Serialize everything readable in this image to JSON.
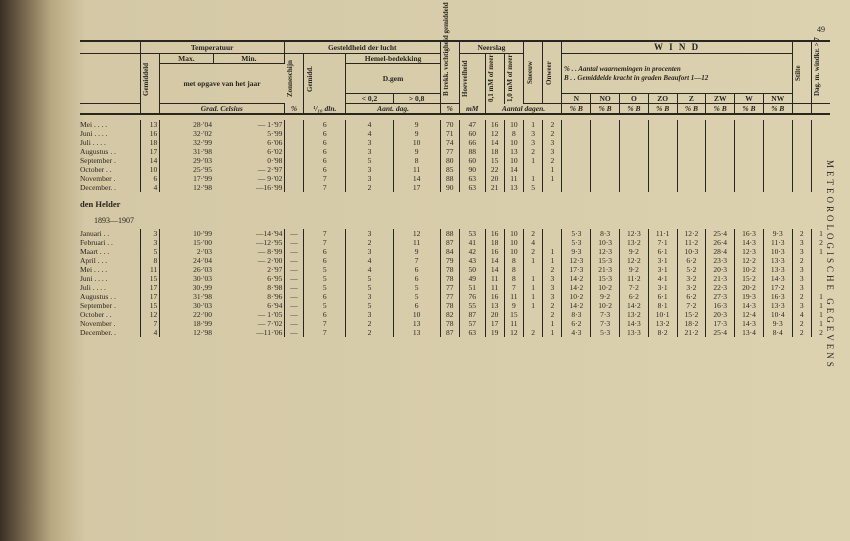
{
  "pagenum": "49",
  "sidetext": "METEOROLOGISCHE GEGEVENS",
  "headers": {
    "temperatuur": "Temperatuur",
    "gesteldheid": "Gesteldheid der lucht",
    "neerslag": "Neerslag",
    "wind": "W I N D",
    "gemiddeld": "Gemiddeld",
    "max": "Max.",
    "min": "Min.",
    "metopgave": "met opgave van het jaar",
    "zonneschijn": "Zonneschijn",
    "gemidd2": "Gemidd.",
    "hemelbedekking": "Hemel-bedekking",
    "dgem": "D.gem",
    "lt02": "< 0,2",
    "gt08": "> 0,8",
    "betrekk": "B trekk. vochtigheid gemiddeld",
    "hoeveelheid": "Hoeveelheid",
    "mm01": "0,1 mM of meer",
    "mm10": "1,0 mM of meer",
    "sneeuw": "Sneeuw",
    "onweer": "Onweer",
    "aant": "Aant. dag.",
    "tendin": "¹/₁₀ dln.",
    "windnote1": "% . . Aantal waarnemingen in procenten",
    "windnote2": "B . . Gemiddelde kracht in graden Beaufort 1—12",
    "stilte": "Stilte",
    "dagwindkr": "Dag. m. windkr. > 7",
    "gradcelsius": "Grad. Celsius",
    "pct": "%",
    "mm": "mM",
    "aantaldagen": "Aantal dagen.",
    "pctB": "% B",
    "dirs": [
      "N",
      "NO",
      "O",
      "ZO",
      "Z",
      "ZW",
      "W",
      "NW"
    ]
  },
  "section1": {
    "rows": [
      {
        "m": "Mei . . . .",
        "g": "13",
        "max": "28·'04",
        "min": "— 1·'97",
        "zon": "",
        "gem": "6",
        "lt": "4",
        "gt": "9",
        "bt": "70",
        "hv": "47",
        "d1": "16",
        "d2": "10",
        "sn": "1",
        "ow": "2"
      },
      {
        "m": "Juni . . . .",
        "g": "16",
        "max": "32·'02",
        "min": "5·'99",
        "zon": "",
        "gem": "6",
        "lt": "4",
        "gt": "9",
        "bt": "71",
        "hv": "60",
        "d1": "12",
        "d2": "8",
        "sn": "3",
        "ow": "2"
      },
      {
        "m": "Juli . . . .",
        "g": "18",
        "max": "32·'99",
        "min": "6·'06",
        "zon": "",
        "gem": "6",
        "lt": "3",
        "gt": "10",
        "bt": "74",
        "hv": "66",
        "d1": "14",
        "d2": "10",
        "sn": "3",
        "ow": "3"
      },
      {
        "m": "Augustus . .",
        "g": "17",
        "max": "31·'98",
        "min": "6·'02",
        "zon": "",
        "gem": "6",
        "lt": "3",
        "gt": "9",
        "bt": "77",
        "hv": "88",
        "d1": "18",
        "d2": "13",
        "sn": "2",
        "ow": "3"
      },
      {
        "m": "September .",
        "g": "14",
        "max": "29·'03",
        "min": "0·'98",
        "zon": "",
        "gem": "6",
        "lt": "5",
        "gt": "8",
        "bt": "80",
        "hv": "60",
        "d1": "15",
        "d2": "10",
        "sn": "1",
        "ow": "2"
      },
      {
        "m": "October . .",
        "g": "10",
        "max": "25·'95",
        "min": "— 2·'97",
        "zon": "",
        "gem": "6",
        "lt": "3",
        "gt": "11",
        "bt": "85",
        "hv": "90",
        "d1": "22",
        "d2": "14",
        "sn": "",
        "ow": "1"
      },
      {
        "m": "November .",
        "g": "6",
        "max": "17·'99",
        "min": "— 9·'02",
        "zon": "",
        "gem": "7",
        "lt": "3",
        "gt": "14",
        "bt": "88",
        "hv": "63",
        "d1": "20",
        "d2": "11",
        "sn": "1",
        "ow": "1"
      },
      {
        "m": "December. .",
        "g": "4",
        "max": "12·'98",
        "min": "—16·'99",
        "zon": "",
        "gem": "7",
        "lt": "2",
        "gt": "17",
        "bt": "90",
        "hv": "63",
        "d1": "21",
        "d2": "13",
        "sn": "5",
        "ow": ""
      }
    ]
  },
  "section2": {
    "title": "den Helder",
    "years": "1893—1907",
    "rows": [
      {
        "m": "Januari . .",
        "g": "3",
        "max": "10·'99",
        "min": "—14·'94",
        "zon": "—",
        "gem": "7",
        "lt": "3",
        "gt": "12",
        "bt": "88",
        "hv": "53",
        "d1": "16",
        "d2": "10",
        "sn": "2",
        "ow": "",
        "w": [
          "5·3",
          "8·3",
          "12·3",
          "11·1",
          "12·2",
          "25·4",
          "16·3",
          "9·3"
        ],
        "st": "2",
        "dk": "1"
      },
      {
        "m": "Februari . .",
        "g": "3",
        "max": "15·'00",
        "min": "—12·'95",
        "zon": "—",
        "gem": "7",
        "lt": "2",
        "gt": "11",
        "bt": "87",
        "hv": "41",
        "d1": "18",
        "d2": "10",
        "sn": "4",
        "ow": "",
        "w": [
          "5·3",
          "10·3",
          "13·2",
          "7·1",
          "11·2",
          "26·4",
          "14·3",
          "11·3"
        ],
        "st": "3",
        "dk": "2"
      },
      {
        "m": "Maart . . .",
        "g": "5",
        "max": "2·'03",
        "min": "— 8·'99",
        "zon": "—",
        "gem": "6",
        "lt": "3",
        "gt": "9",
        "bt": "84",
        "hv": "42",
        "d1": "16",
        "d2": "10",
        "sn": "2",
        "ow": "1",
        "w": [
          "9·3",
          "12·3",
          "9·2",
          "6·1",
          "10·3",
          "28·4",
          "12·3",
          "10·3"
        ],
        "st": "3",
        "dk": "1"
      },
      {
        "m": "April . . .",
        "g": "8",
        "max": "24·'04",
        "min": "— 2·'00",
        "zon": "—",
        "gem": "6",
        "lt": "4",
        "gt": "7",
        "bt": "79",
        "hv": "43",
        "d1": "14",
        "d2": "8",
        "sn": "1",
        "ow": "1",
        "w": [
          "12·3",
          "15·3",
          "12·2",
          "3·1",
          "6·2",
          "23·3",
          "12·2",
          "13·3"
        ],
        "st": "2",
        "dk": ""
      },
      {
        "m": "Mei . . . .",
        "g": "11",
        "max": "26·'03",
        "min": "2·'97",
        "zon": "—",
        "gem": "5",
        "lt": "4",
        "gt": "6",
        "bt": "78",
        "hv": "50",
        "d1": "14",
        "d2": "8",
        "sn": "",
        "ow": "2",
        "w": [
          "17·3",
          "21·3",
          "9·2",
          "3·1",
          "5·2",
          "20·3",
          "10·2",
          "13·3"
        ],
        "st": "3",
        "dk": ""
      },
      {
        "m": "Juni . . . .",
        "g": "15",
        "max": "30·'03",
        "min": "6·'95",
        "zon": "—",
        "gem": "5",
        "lt": "5",
        "gt": "6",
        "bt": "78",
        "hv": "49",
        "d1": "11",
        "d2": "8",
        "sn": "1",
        "ow": "3",
        "w": [
          "14·2",
          "15·3",
          "11·2",
          "4·1",
          "3·2",
          "21·3",
          "15·2",
          "14·3"
        ],
        "st": "3",
        "dk": ""
      },
      {
        "m": "Juli . . . .",
        "g": "17",
        "max": "30·,99",
        "min": "8·'98",
        "zon": "—",
        "gem": "5",
        "lt": "5",
        "gt": "5",
        "bt": "77",
        "hv": "51",
        "d1": "11",
        "d2": "7",
        "sn": "1",
        "ow": "3",
        "w": [
          "14·2",
          "10·2",
          "7·2",
          "3·1",
          "3·2",
          "22·3",
          "20·2",
          "17·2"
        ],
        "st": "3",
        "dk": ""
      },
      {
        "m": "Augustus . .",
        "g": "17",
        "max": "31·'98",
        "min": "8·'96",
        "zon": "—",
        "gem": "6",
        "lt": "3",
        "gt": "5",
        "bt": "77",
        "hv": "76",
        "d1": "16",
        "d2": "11",
        "sn": "1",
        "ow": "3",
        "w": [
          "10·2",
          "9·2",
          "6·2",
          "6·1",
          "6·2",
          "27·3",
          "19·3",
          "16·3"
        ],
        "st": "2",
        "dk": "1"
      },
      {
        "m": "September .",
        "g": "15",
        "max": "30·'03",
        "min": "6·'94",
        "zon": "—",
        "gem": "5",
        "lt": "5",
        "gt": "6",
        "bt": "78",
        "hv": "55",
        "d1": "13",
        "d2": "9",
        "sn": "1",
        "ow": "2",
        "w": [
          "14·2",
          "10·2",
          "14·2",
          "8·1",
          "7·2",
          "16·3",
          "14·3",
          "13·3"
        ],
        "st": "3",
        "dk": "1"
      },
      {
        "m": "October . .",
        "g": "12",
        "max": "22·'00",
        "min": "— 1·'05",
        "zon": "—",
        "gem": "6",
        "lt": "3",
        "gt": "10",
        "bt": "82",
        "hv": "87",
        "d1": "20",
        "d2": "15",
        "sn": "",
        "ow": "2",
        "w": [
          "8·3",
          "7·3",
          "13·2",
          "10·1",
          "15·2",
          "20·3",
          "12·4",
          "10·4"
        ],
        "st": "4",
        "dk": "1"
      },
      {
        "m": "November .",
        "g": "7",
        "max": "18·'99",
        "min": "— 7·'02",
        "zon": "—",
        "gem": "7",
        "lt": "2",
        "gt": "13",
        "bt": "78",
        "hv": "57",
        "d1": "17",
        "d2": "11",
        "sn": "",
        "ow": "1",
        "w": [
          "6·2",
          "7·3",
          "14·3",
          "13·2",
          "18·2",
          "17·3",
          "14·3",
          "9·3"
        ],
        "st": "2",
        "dk": "1"
      },
      {
        "m": "December. .",
        "g": "4",
        "max": "12·'98",
        "min": "—11·'06",
        "zon": "—",
        "gem": "7",
        "lt": "2",
        "gt": "13",
        "bt": "87",
        "hv": "63",
        "d1": "19",
        "d2": "12",
        "sn": "2",
        "ow": "1",
        "w": [
          "4·3",
          "5·3",
          "13·3",
          "8·2",
          "21·2",
          "25·4",
          "13·4",
          "8·4"
        ],
        "st": "2",
        "dk": "2"
      }
    ]
  }
}
